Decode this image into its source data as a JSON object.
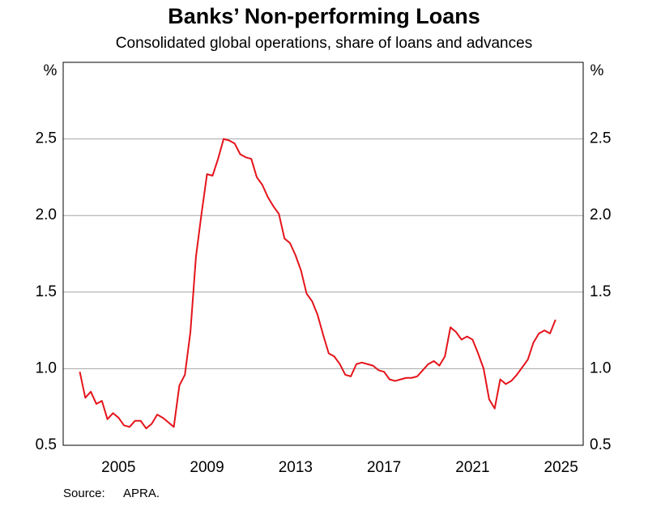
{
  "chart_data": {
    "type": "line",
    "title": "Banks’ Non-performing Loans",
    "subtitle": "Consolidated global operations, share of loans and advances",
    "y_unit": "%",
    "source_label": "Source:",
    "source": "APRA.",
    "xlim": [
      2003,
      2026.5
    ],
    "xticks": [
      {
        "value": 2005.5,
        "label": "2005"
      },
      {
        "value": 2009.5,
        "label": "2009"
      },
      {
        "value": 2013.5,
        "label": "2013"
      },
      {
        "value": 2017.5,
        "label": "2017"
      },
      {
        "value": 2021.5,
        "label": "2021"
      },
      {
        "value": 2025.5,
        "label": "2025"
      }
    ],
    "ylim": [
      0.5,
      3.0
    ],
    "yticks": [
      0.5,
      {
        "value": 1,
        "label": "1.0"
      },
      1.5,
      {
        "value": 2,
        "label": "2.0"
      },
      2.5
    ],
    "grid": true,
    "x": [
      2003.75,
      2004,
      2004.25,
      2004.5,
      2004.75,
      2005,
      2005.25,
      2005.5,
      2005.75,
      2006,
      2006.25,
      2006.5,
      2006.75,
      2007,
      2007.25,
      2007.5,
      2007.75,
      2008,
      2008.25,
      2008.5,
      2008.75,
      2009,
      2009.25,
      2009.5,
      2009.75,
      2010,
      2010.25,
      2010.5,
      2010.75,
      2011,
      2011.25,
      2011.5,
      2011.75,
      2012,
      2012.25,
      2012.5,
      2012.75,
      2013,
      2013.25,
      2013.5,
      2013.75,
      2014,
      2014.25,
      2014.5,
      2014.75,
      2015,
      2015.25,
      2015.5,
      2015.75,
      2016,
      2016.25,
      2016.5,
      2016.75,
      2017,
      2017.25,
      2017.5,
      2017.75,
      2018,
      2018.25,
      2018.5,
      2018.75,
      2019,
      2019.25,
      2019.5,
      2019.75,
      2020,
      2020.25,
      2020.5,
      2020.75,
      2021,
      2021.25,
      2021.5,
      2021.75,
      2022,
      2022.25,
      2022.5,
      2022.75,
      2023,
      2023.25,
      2023.5,
      2023.75,
      2024,
      2024.25,
      2024.5,
      2024.75,
      2025,
      2025.25
    ],
    "series": [
      {
        "color": "#e4141b",
        "values": [
          0.98,
          0.81,
          0.85,
          0.77,
          0.79,
          0.67,
          0.71,
          0.68,
          0.63,
          0.62,
          0.66,
          0.66,
          0.61,
          0.64,
          0.7,
          0.68,
          0.65,
          0.62,
          0.89,
          0.96,
          1.24,
          1.73,
          2.01,
          2.27,
          2.26,
          2.37,
          2.5,
          2.49,
          2.47,
          2.4,
          2.38,
          2.37,
          2.25,
          2.2,
          2.12,
          2.06,
          2.01,
          1.85,
          1.82,
          1.74,
          1.64,
          1.49,
          1.44,
          1.35,
          1.22,
          1.1,
          1.08,
          1.03,
          0.96,
          0.95,
          1.03,
          1.04,
          1.03,
          1.02,
          0.99,
          0.98,
          0.93,
          0.92,
          0.93,
          0.94,
          0.94,
          0.95,
          0.99,
          1.03,
          1.05,
          1.02,
          1.08,
          1.27,
          1.24,
          1.19,
          1.21,
          1.19,
          1.1,
          1.0,
          0.8,
          0.74,
          0.93,
          0.9,
          0.92,
          0.96,
          1.01,
          1.06,
          1.17,
          1.23,
          1.25,
          1.23,
          1.32
        ]
      }
    ]
  }
}
